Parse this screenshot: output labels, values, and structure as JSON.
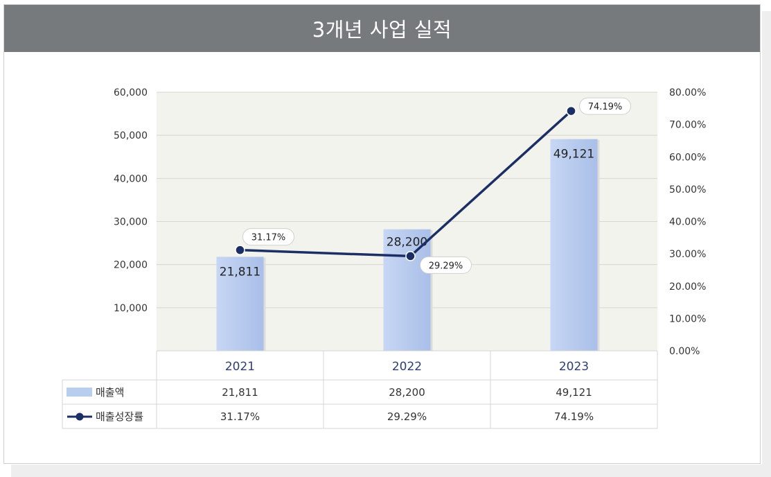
{
  "title": "3개년 사업 실적",
  "colors": {
    "header_bg": "#767a7d",
    "plot_bg": "#f3f3ee",
    "bar": "#b9cdef",
    "line": "#1b2f64",
    "year_text": "#2e3e74"
  },
  "chart_data": {
    "type": "bar",
    "categories": [
      "2021",
      "2022",
      "2023"
    ],
    "series": [
      {
        "name": "매출액",
        "type": "bar",
        "axis": "left",
        "values": [
          21811,
          28200,
          49121
        ],
        "labels": [
          "21,811",
          "28,200",
          "49,121"
        ]
      },
      {
        "name": "매출성장률",
        "type": "line",
        "axis": "right",
        "values": [
          31.17,
          29.29,
          74.19
        ],
        "labels": [
          "31.17%",
          "29.29%",
          "74.19%"
        ]
      }
    ],
    "left_axis": {
      "ylim": [
        0,
        60000
      ],
      "ticks": [
        "10,000",
        "20,000",
        "30,000",
        "40,000",
        "50,000",
        "60,000"
      ]
    },
    "right_axis": {
      "ylim": [
        0,
        80
      ],
      "ticks": [
        "0.00%",
        "10.00%",
        "20.00%",
        "30.00%",
        "40.00%",
        "50.00%",
        "60.00%",
        "70.00%",
        "80.00%"
      ]
    },
    "grid": true,
    "legend": "data-table",
    "table": {
      "rows": [
        {
          "legend": "매출액",
          "values": [
            "21,811",
            "28,200",
            "49,121"
          ]
        },
        {
          "legend": "매출성장률",
          "values": [
            "31.17%",
            "29.29%",
            "74.19%"
          ]
        }
      ]
    }
  }
}
